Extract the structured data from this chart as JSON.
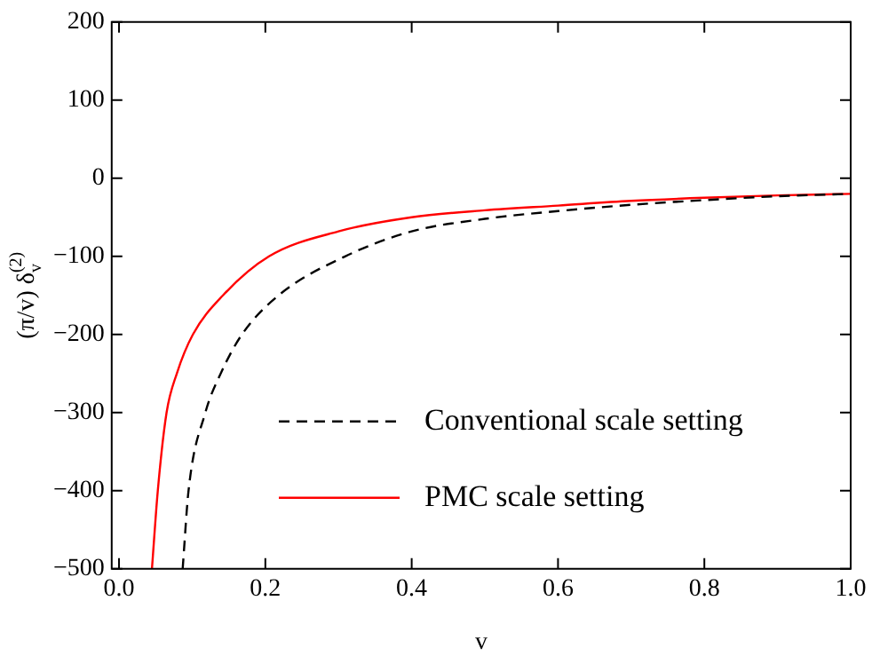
{
  "chart_data": {
    "type": "line",
    "xlabel": "v",
    "ylabel": "(π/v) δ$_{v}$$^{(2)}$",
    "xlim": [
      -0.01,
      1.0
    ],
    "xticks": [
      {
        "value": 0,
        "label": "0.0"
      },
      0.2,
      0.4,
      0.6,
      0.8,
      {
        "value": 1,
        "label": "1.0"
      }
    ],
    "ylim": [
      -500,
      200
    ],
    "yticks": [
      -500,
      -400,
      -300,
      -200,
      -100,
      0,
      100,
      200
    ],
    "grid": false,
    "legend": "bottom right",
    "marker": "none",
    "series": [
      {
        "name": "Conventional scale setting",
        "color": "#000000",
        "line_style": "dashed",
        "x": [
          0.087,
          0.095,
          0.118,
          0.139,
          0.168,
          0.218,
          0.309,
          0.4,
          0.5,
          0.6,
          0.7,
          0.8,
          0.9,
          1.0
        ],
        "values": [
          -500,
          -400,
          -300,
          -250,
          -200,
          -150,
          -100,
          -68,
          -52,
          -42,
          -34,
          -28,
          -23,
          -20
        ]
      },
      {
        "name": "PMC scale setting",
        "color": "#ff0000",
        "line_style": "solid",
        "x": [
          0.045,
          0.053,
          0.065,
          0.079,
          0.101,
          0.142,
          0.205,
          0.3,
          0.4,
          0.5,
          0.6,
          0.7,
          0.8,
          0.9,
          1.0
        ],
        "values": [
          -500,
          -400,
          -300,
          -250,
          -200,
          -150,
          -100,
          -68,
          -50,
          -41,
          -35,
          -29,
          -25,
          -22,
          -20
        ]
      }
    ]
  }
}
